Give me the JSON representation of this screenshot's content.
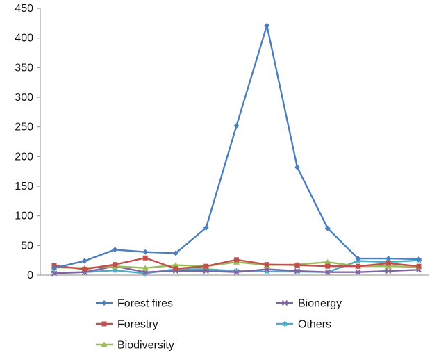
{
  "chart_data": {
    "type": "line",
    "title": "",
    "xlabel": "",
    "ylabel": "",
    "ylim": [
      0,
      450
    ],
    "yticks": [
      "0",
      "50",
      "100",
      "150",
      "200",
      "250",
      "300",
      "350",
      "400",
      "450"
    ],
    "x": [
      1,
      2,
      3,
      4,
      5,
      6,
      7,
      8,
      9,
      10,
      11,
      12,
      13
    ],
    "grid": false,
    "legend_position": "bottom",
    "series": [
      {
        "name": "Forest fires",
        "color": "#4a7ebf",
        "marker": "diamond",
        "values": [
          12,
          24,
          43,
          39,
          37,
          80,
          252,
          421,
          182,
          79,
          28,
          28,
          27
        ]
      },
      {
        "name": "Forestry",
        "color": "#c0504d",
        "marker": "square",
        "values": [
          16,
          10,
          18,
          29,
          11,
          15,
          26,
          18,
          17,
          15,
          15,
          20,
          15
        ]
      },
      {
        "name": "Biodiversity",
        "color": "#9bbb59",
        "marker": "triangle",
        "values": [
          13,
          12,
          15,
          12,
          17,
          15,
          22,
          17,
          18,
          22,
          15,
          15,
          14
        ]
      },
      {
        "name": "Bionergy",
        "color": "#8064a2",
        "marker": "x",
        "values": [
          3,
          5,
          15,
          5,
          7,
          7,
          5,
          10,
          7,
          5,
          5,
          7,
          9
        ]
      },
      {
        "name": "Others",
        "color": "#4bacc6",
        "marker": "star",
        "values": [
          4,
          5,
          8,
          3,
          10,
          10,
          7,
          6,
          6,
          5,
          24,
          22,
          25
        ]
      }
    ]
  }
}
